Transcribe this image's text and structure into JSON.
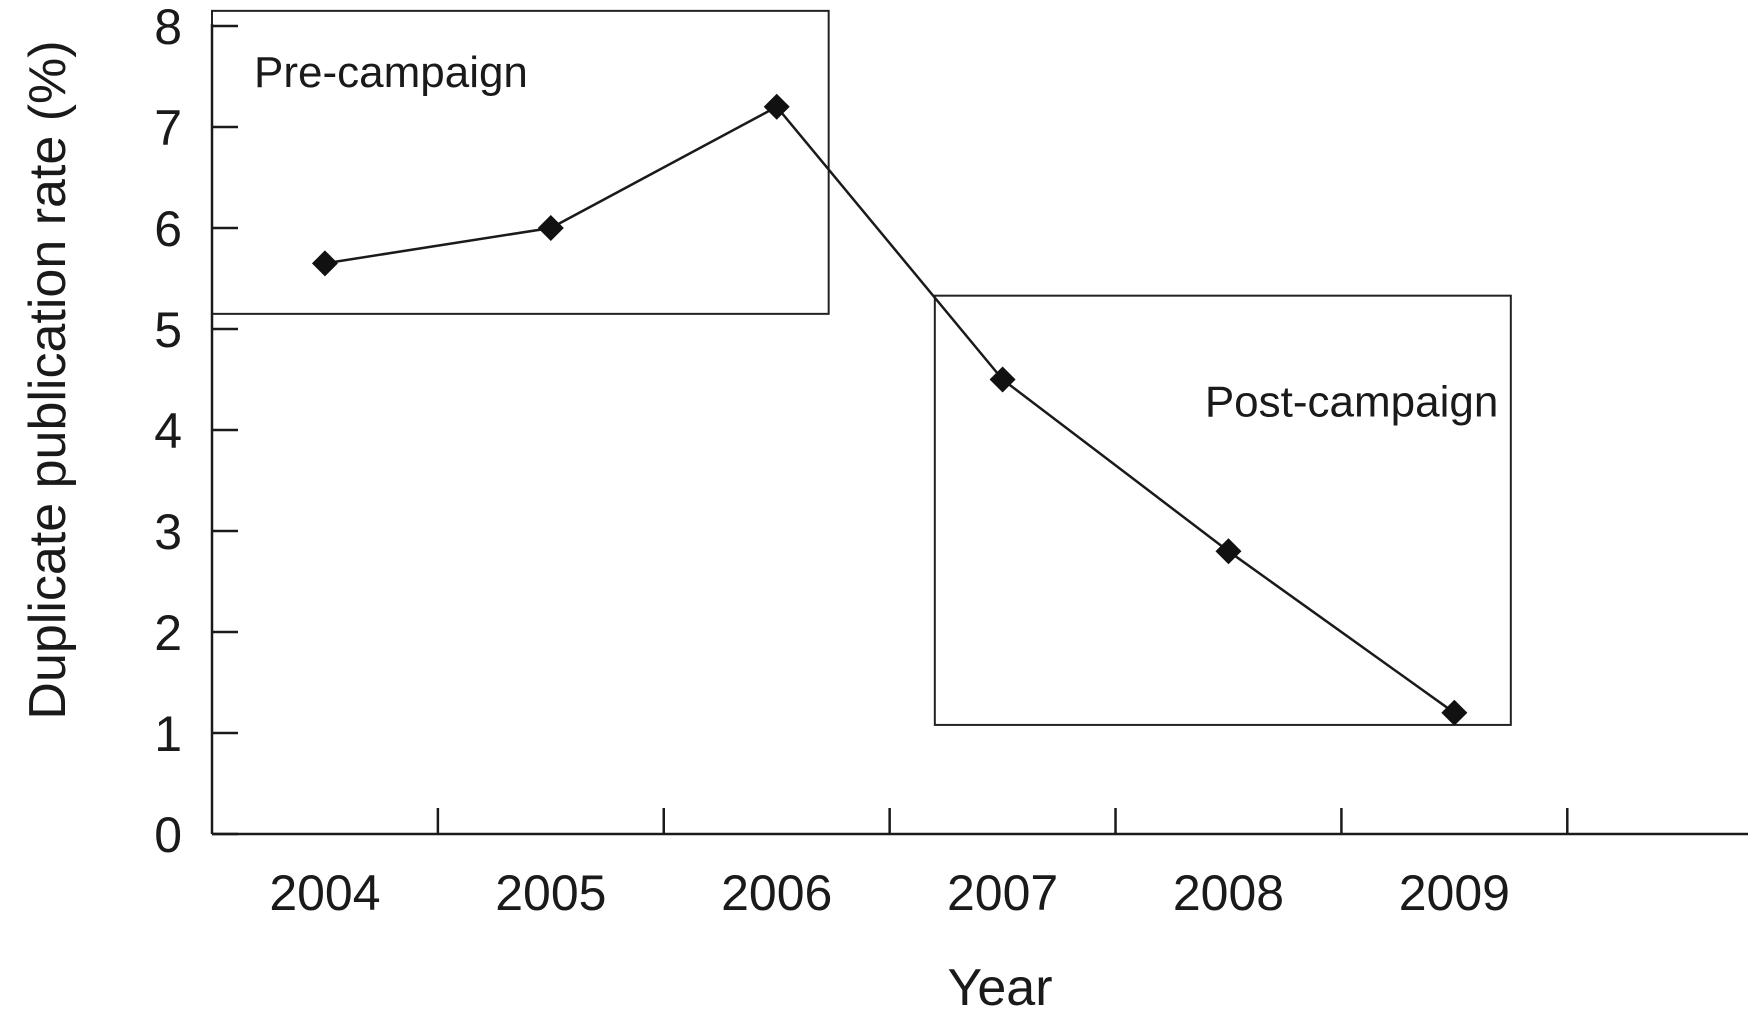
{
  "chart_data": {
    "type": "line",
    "title": "",
    "xlabel": "Year",
    "ylabel": "Duplicate publication rate (%)",
    "categories": [
      "2004",
      "2005",
      "2006",
      "2007",
      "2008",
      "2009"
    ],
    "series": [
      {
        "values": [
          5.65,
          6.0,
          7.2,
          4.5,
          2.8,
          1.2
        ]
      }
    ],
    "ylim": [
      0,
      8
    ],
    "yticks": [
      0,
      1,
      2,
      3,
      4,
      5,
      6,
      7,
      8
    ],
    "grid": false,
    "marker": "diamond",
    "colors": {
      "line": "#1a1a1a",
      "marker": "#111111"
    },
    "annotations": [
      {
        "label": "Pre-campaign",
        "x_from": 2003.5,
        "x_to": 2006.23,
        "y_from": 5.15,
        "y_to": 8.15
      },
      {
        "label": "Post-campaign",
        "x_from": 2006.7,
        "x_to": 2009.25,
        "y_from": 1.08,
        "y_to": 5.33
      }
    ]
  }
}
